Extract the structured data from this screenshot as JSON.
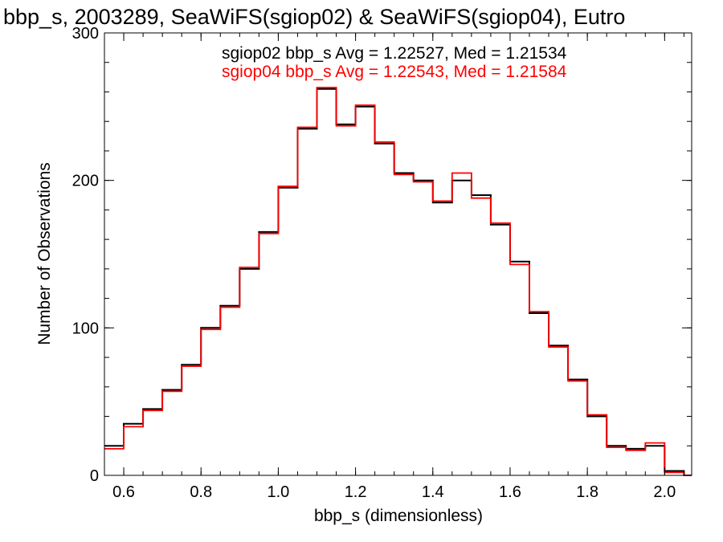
{
  "chart_data": {
    "type": "line",
    "title": "bbp_s, 2003289, SeaWiFS(sgiop02) & SeaWiFS(sgiop04), Eutro",
    "xlabel": "bbp_s (dimensionless)",
    "ylabel": "Number of Observations",
    "xlim": [
      0.55,
      2.07
    ],
    "ylim": [
      0,
      300
    ],
    "xticks": [
      "0.6",
      "0.8",
      "1.0",
      "1.2",
      "1.4",
      "1.6",
      "1.8",
      "2.0"
    ],
    "yticks": [
      "0",
      "100",
      "200",
      "300"
    ],
    "legend": [
      {
        "text": "sgiop02 bbp_s Avg = 1.22527, Med = 1.21534",
        "color": "#000000"
      },
      {
        "text": "sgiop04 bbp_s Avg = 1.22543, Med = 1.21584",
        "color": "#ff0000"
      }
    ],
    "series": [
      {
        "color": "#000000",
        "x": [
          0.55,
          0.6,
          0.65,
          0.7,
          0.75,
          0.8,
          0.85,
          0.9,
          0.95,
          1.0,
          1.05,
          1.1,
          1.15,
          1.2,
          1.25,
          1.3,
          1.35,
          1.4,
          1.45,
          1.5,
          1.55,
          1.6,
          1.65,
          1.7,
          1.75,
          1.8,
          1.85,
          1.9,
          1.95,
          2.0,
          2.05
        ],
        "y": [
          20,
          35,
          45,
          58,
          75,
          100,
          115,
          140,
          165,
          195,
          235,
          262,
          238,
          250,
          225,
          205,
          200,
          185,
          200,
          190,
          170,
          145,
          110,
          88,
          65,
          40,
          20,
          18,
          20,
          3,
          0
        ]
      },
      {
        "color": "#ff0000",
        "x": [
          0.55,
          0.6,
          0.65,
          0.7,
          0.75,
          0.8,
          0.85,
          0.9,
          0.95,
          1.0,
          1.05,
          1.1,
          1.15,
          1.2,
          1.25,
          1.3,
          1.35,
          1.4,
          1.45,
          1.5,
          1.55,
          1.6,
          1.65,
          1.7,
          1.75,
          1.8,
          1.85,
          1.9,
          1.95,
          2.0,
          2.05
        ],
        "y": [
          18,
          33,
          44,
          57,
          74,
          99,
          114,
          141,
          164,
          196,
          236,
          263,
          237,
          251,
          226,
          204,
          199,
          186,
          205,
          188,
          171,
          143,
          111,
          87,
          64,
          41,
          19,
          17,
          22,
          2,
          0
        ]
      }
    ]
  }
}
